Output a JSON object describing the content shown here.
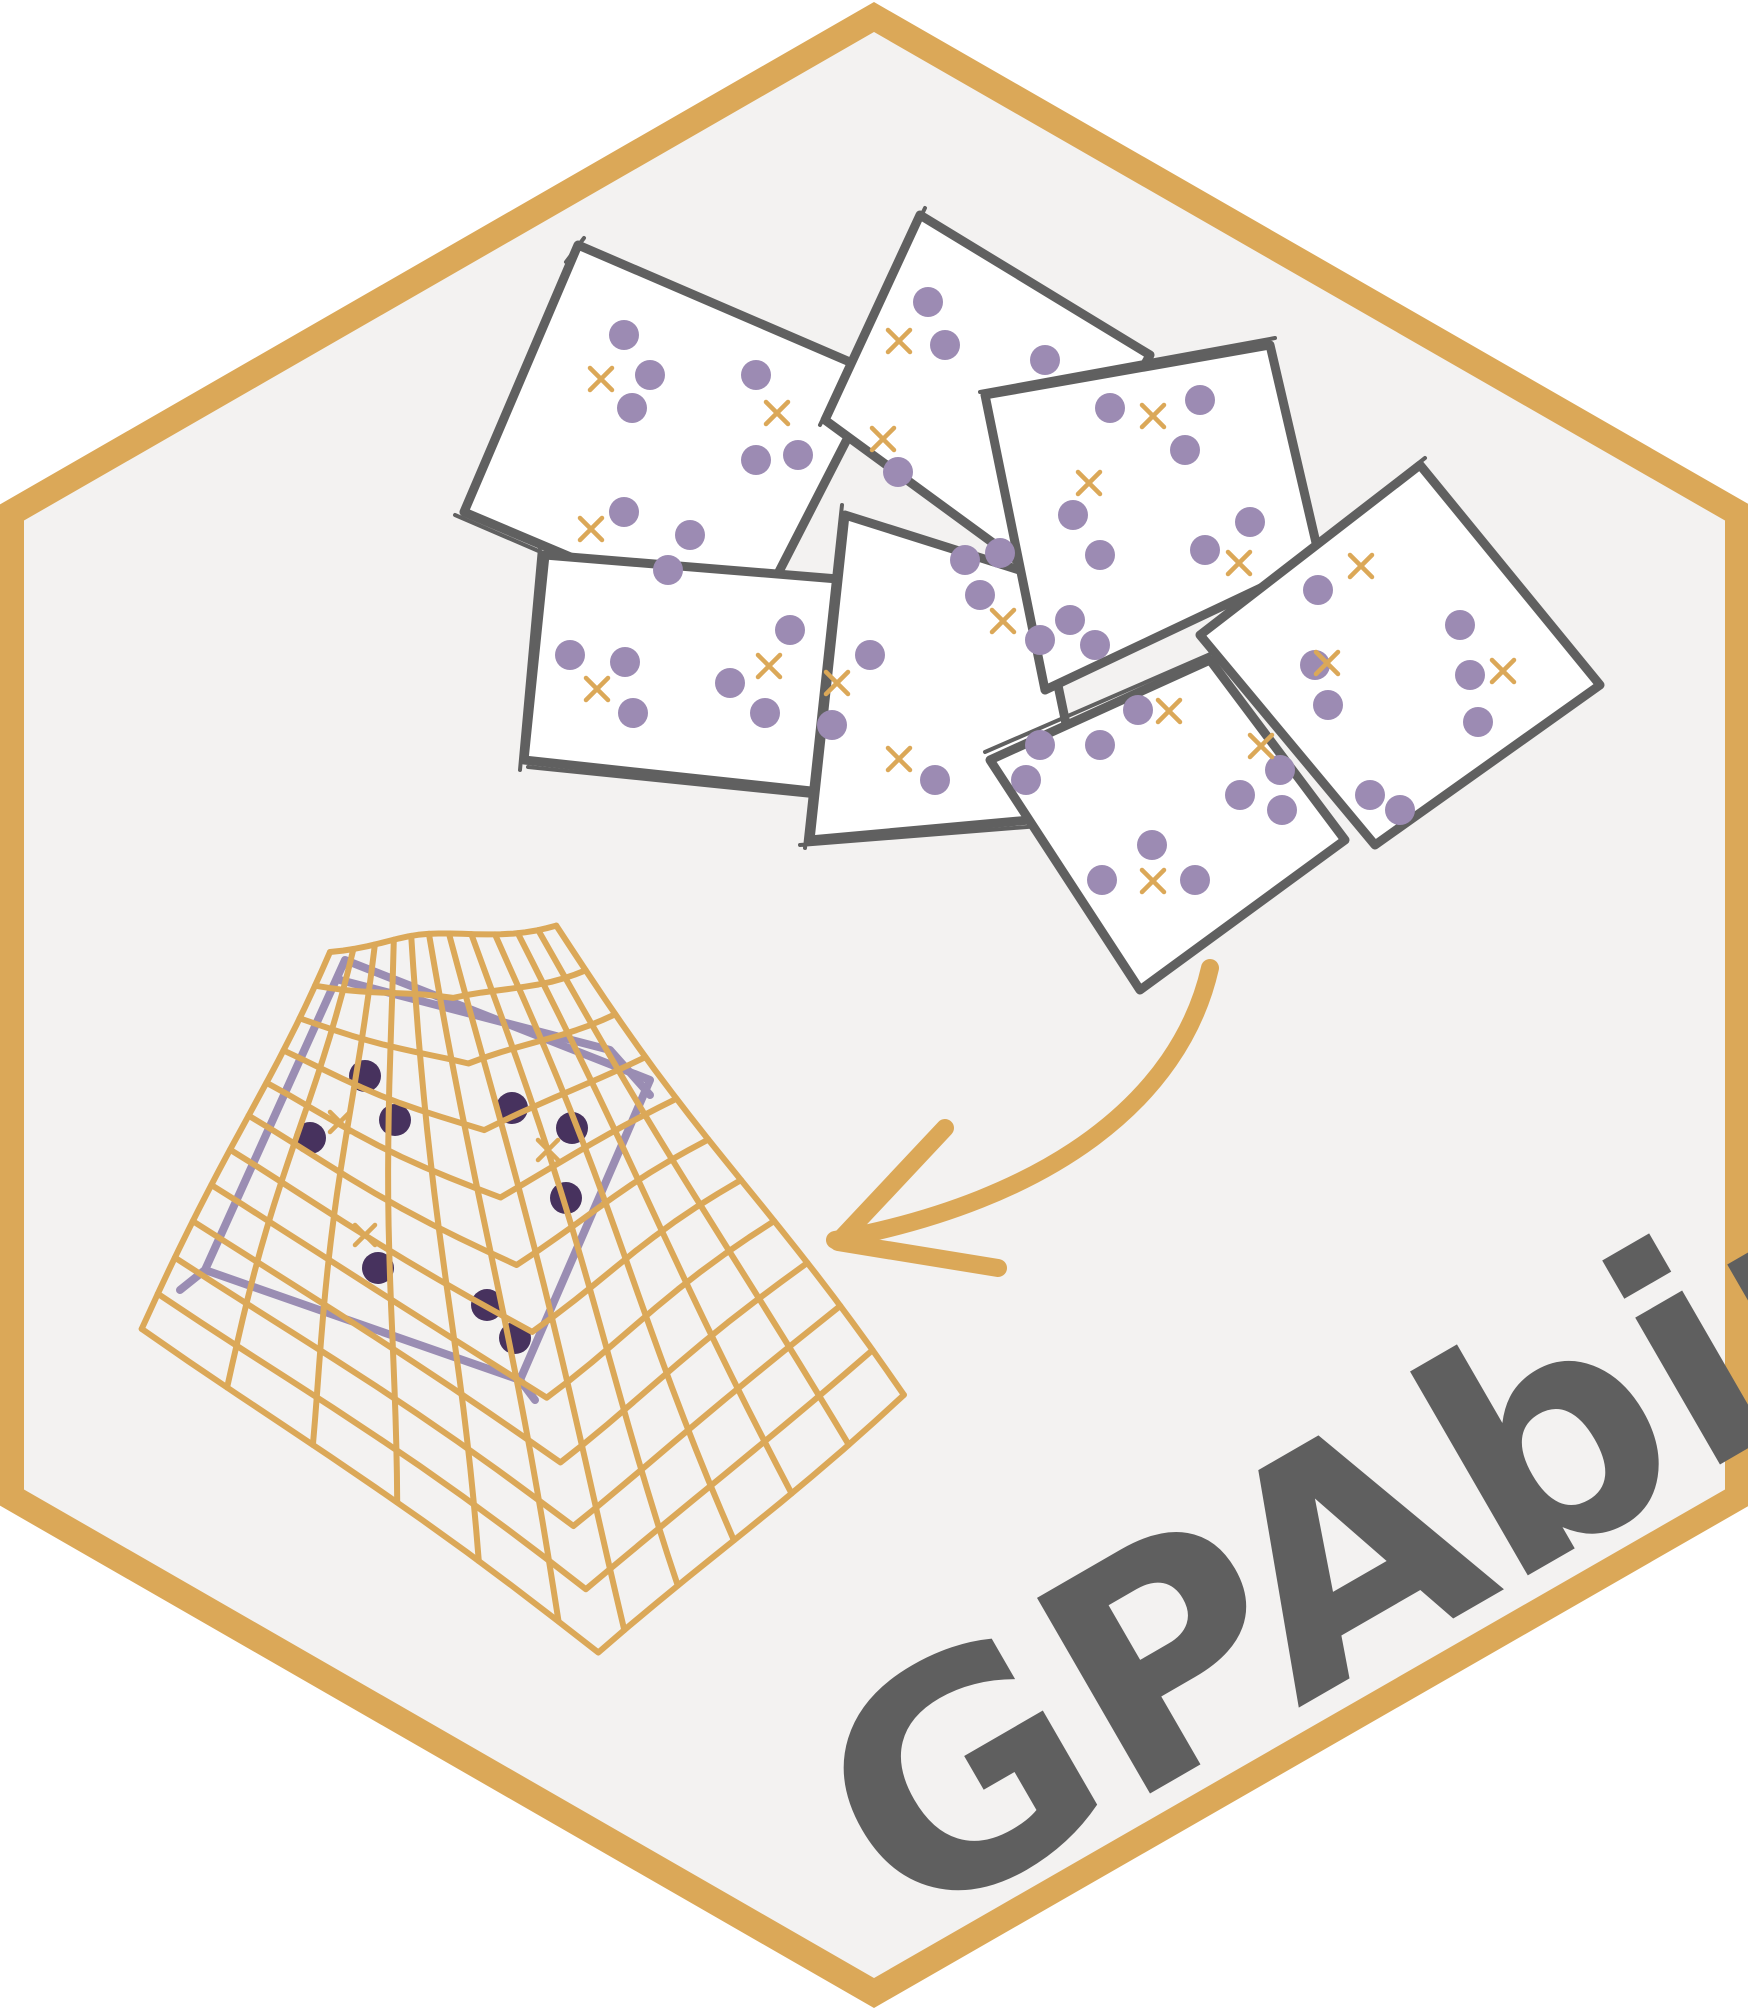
{
  "logo": {
    "name": "GPAbin",
    "colors": {
      "border": "#dba858",
      "background": "#f3f2f1",
      "sketch": "#606060",
      "light_dot": "#9c8bb3",
      "dark_dot": "#47325e",
      "cross": "#dba858",
      "grid": "#dba858"
    }
  }
}
